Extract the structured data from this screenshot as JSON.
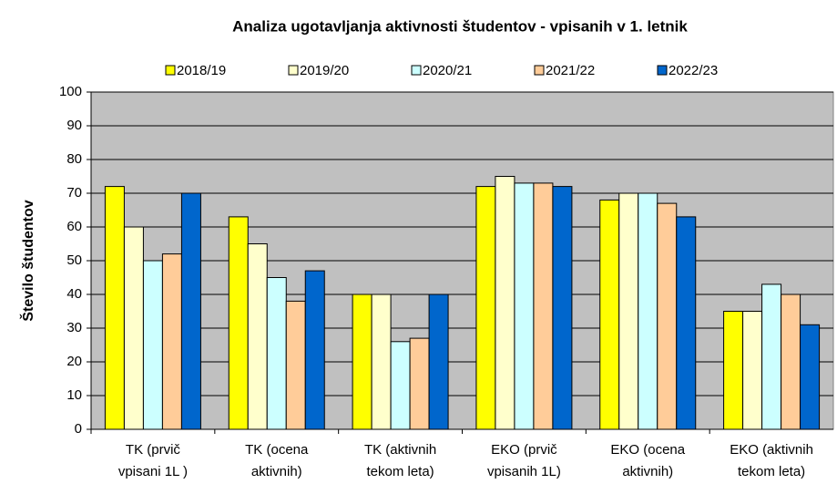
{
  "chart_data": {
    "type": "bar",
    "title": "Analiza ugotavljanja aktivnosti študentov - vpisanih v 1. letnik",
    "y_label": "Število študentov",
    "categories": [
      [
        "TK (prvič",
        "vpisani 1L )"
      ],
      [
        "TK (ocena",
        "aktivnih)"
      ],
      [
        "TK (aktivnih",
        "tekom leta)"
      ],
      [
        "EKO (prvič",
        "vpisanih 1L)"
      ],
      [
        "EKO (ocena",
        "aktivnih)"
      ],
      [
        "EKO (aktivnih",
        "tekom leta)"
      ]
    ],
    "series": [
      {
        "name": "2018/19",
        "color": "#ffff00",
        "values": [
          72,
          63,
          40,
          72,
          68,
          35
        ]
      },
      {
        "name": "2019/20",
        "color": "#ffffcc",
        "values": [
          60,
          55,
          40,
          75,
          70,
          35
        ]
      },
      {
        "name": "2020/21",
        "color": "#ccffff",
        "values": [
          50,
          45,
          26,
          73,
          70,
          43
        ]
      },
      {
        "name": "2021/22",
        "color": "#ffcc99",
        "values": [
          52,
          38,
          27,
          73,
          67,
          40
        ]
      },
      {
        "name": "2022/23",
        "color": "#0066cc",
        "values": [
          70,
          47,
          40,
          72,
          63,
          31
        ]
      }
    ],
    "ylim": [
      0,
      100
    ],
    "yticks": [
      0,
      10,
      20,
      30,
      40,
      50,
      60,
      70,
      80,
      90,
      100
    ],
    "grid": true,
    "legend": "top"
  }
}
